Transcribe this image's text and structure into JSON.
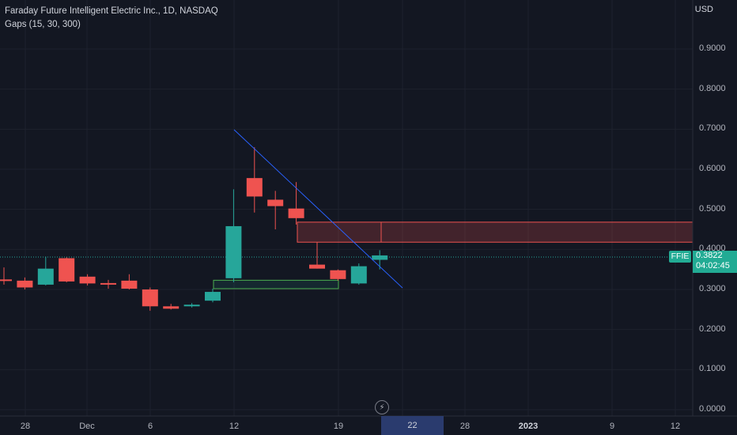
{
  "header": {
    "title": "Faraday Future Intelligent Electric Inc., 1D, NASDAQ",
    "indicator": "Gaps (15, 30, 300)",
    "currency": "USD"
  },
  "symbol": "FFIE",
  "last_price": "0.3822",
  "countdown": "04:02:45",
  "highlight_date": "22",
  "colors": {
    "up": "#26a69a",
    "down": "#ef5350",
    "background": "#131722",
    "trendline": "#2962ff"
  },
  "chart_data": {
    "type": "candlestick",
    "title": "Faraday Future Intelligent Electric Inc., 1D, NASDAQ",
    "y_axis_ticks": [
      "0.9000",
      "0.8000",
      "0.7000",
      "0.6000",
      "0.5000",
      "0.4000",
      "0.3000",
      "0.2000",
      "0.1000",
      "0.0000"
    ],
    "x_axis_ticks": [
      "28",
      "Dec",
      "6",
      "12",
      "19",
      "22",
      "28",
      "2023",
      "9",
      "12"
    ],
    "ylim": [
      0,
      0.9
    ],
    "candles": [
      {
        "o": 0.325,
        "h": 0.355,
        "l": 0.312,
        "c": 0.322
      },
      {
        "o": 0.322,
        "h": 0.33,
        "l": 0.3,
        "c": 0.305
      },
      {
        "o": 0.312,
        "h": 0.382,
        "l": 0.31,
        "c": 0.352
      },
      {
        "o": 0.378,
        "h": 0.38,
        "l": 0.318,
        "c": 0.32
      },
      {
        "o": 0.332,
        "h": 0.338,
        "l": 0.31,
        "c": 0.315
      },
      {
        "o": 0.316,
        "h": 0.324,
        "l": 0.302,
        "c": 0.314
      },
      {
        "o": 0.322,
        "h": 0.338,
        "l": 0.3,
        "c": 0.302
      },
      {
        "o": 0.3,
        "h": 0.305,
        "l": 0.247,
        "c": 0.258
      },
      {
        "o": 0.258,
        "h": 0.264,
        "l": 0.25,
        "c": 0.252
      },
      {
        "o": 0.258,
        "h": 0.266,
        "l": 0.255,
        "c": 0.262
      },
      {
        "o": 0.272,
        "h": 0.302,
        "l": 0.268,
        "c": 0.294
      },
      {
        "o": 0.328,
        "h": 0.55,
        "l": 0.318,
        "c": 0.458
      },
      {
        "o": 0.578,
        "h": 0.655,
        "l": 0.492,
        "c": 0.532
      },
      {
        "o": 0.524,
        "h": 0.546,
        "l": 0.45,
        "c": 0.508
      },
      {
        "o": 0.502,
        "h": 0.568,
        "l": 0.462,
        "c": 0.478
      },
      {
        "o": 0.362,
        "h": 0.418,
        "l": 0.352,
        "c": 0.352
      },
      {
        "o": 0.348,
        "h": 0.35,
        "l": 0.322,
        "c": 0.326
      },
      {
        "o": 0.315,
        "h": 0.365,
        "l": 0.312,
        "c": 0.358
      },
      {
        "o": 0.374,
        "h": 0.398,
        "l": 0.35,
        "c": 0.385
      }
    ],
    "gaps": [
      {
        "type": "down",
        "from": 0.418,
        "to": 0.468
      },
      {
        "type": "up",
        "from": 0.302,
        "to": 0.323
      }
    ],
    "trendline": {
      "from": 0.7,
      "to": 0.305
    }
  }
}
